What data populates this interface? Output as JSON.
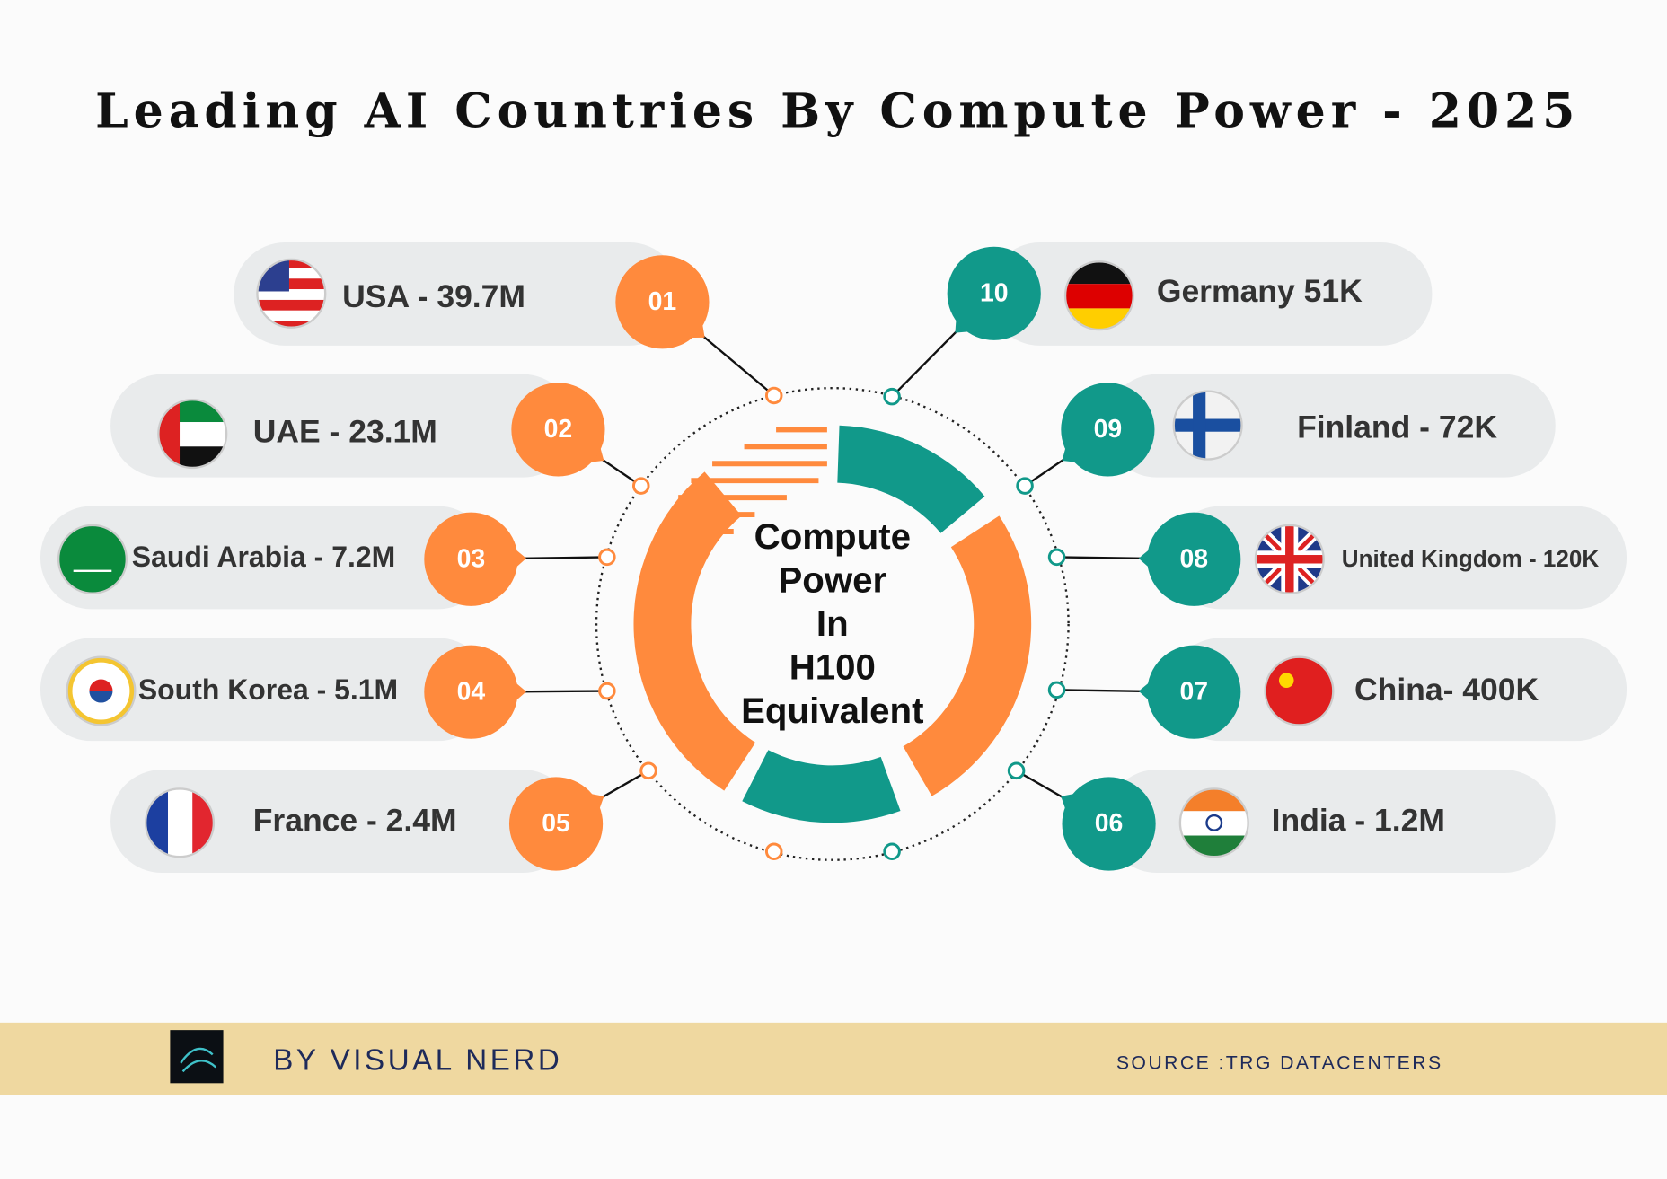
{
  "title": "Leading AI Countries By Compute Power - 2025",
  "center_label": [
    "Compute",
    "Power",
    "In",
    "H100",
    "Equivalent"
  ],
  "items": [
    {
      "number": "01",
      "label": "USA - 39.7M"
    },
    {
      "number": "02",
      "label": "UAE - 23.1M"
    },
    {
      "number": "03",
      "label": "Saudi Arabia - 7.2M"
    },
    {
      "number": "04",
      "label": "South Korea - 5.1M"
    },
    {
      "number": "05",
      "label": "France - 2.4M"
    },
    {
      "number": "06",
      "label": "India - 1.2M"
    },
    {
      "number": "07",
      "label": "China- 400K"
    },
    {
      "number": "08",
      "label": "United Kingdom - 120K"
    },
    {
      "number": "09",
      "label": "Finland - 72K"
    },
    {
      "number": "10",
      "label": "Germany 51K"
    }
  ],
  "footer": {
    "brand": "BY VISUAL NERD",
    "source": "SOURCE :TRG DATACENTERS"
  }
}
